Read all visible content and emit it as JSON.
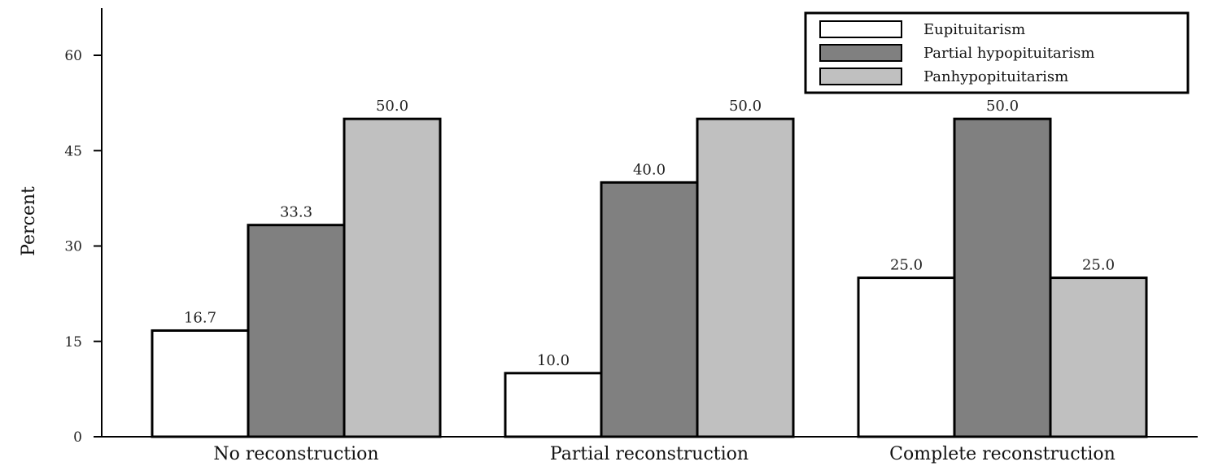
{
  "chart_data": {
    "type": "bar",
    "title": "",
    "xlabel": "",
    "ylabel": "Percent",
    "ylim": [
      0,
      65
    ],
    "yticks": [
      0,
      15,
      30,
      45,
      60
    ],
    "categories": [
      "No reconstruction",
      "Partial reconstruction",
      "Complete reconstruction"
    ],
    "series": [
      {
        "name": "Eupituitarism",
        "values": [
          16.7,
          10.0,
          25.0
        ],
        "labels": [
          "16.7",
          "10.0",
          "25.0"
        ],
        "color": "#ffffff"
      },
      {
        "name": "Partial hypopituitarism",
        "values": [
          33.3,
          40.0,
          50.0
        ],
        "labels": [
          "33.3",
          "40.0",
          "50.0"
        ],
        "color": "#808080"
      },
      {
        "name": "Panhypopituitarism",
        "values": [
          50.0,
          50.0,
          25.0
        ],
        "labels": [
          "50.0",
          "50.0",
          "25.0"
        ],
        "color": "#c0c0c0"
      }
    ],
    "legend": "top-right",
    "grid": false
  }
}
